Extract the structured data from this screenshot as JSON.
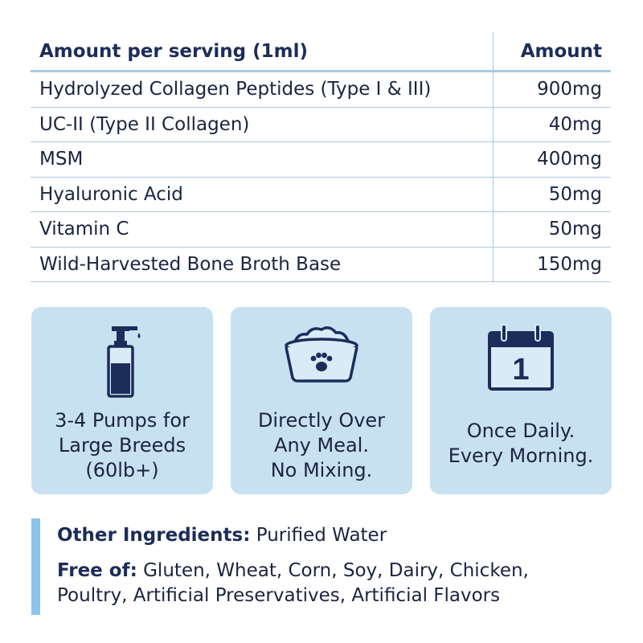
{
  "table": {
    "header_name": "Amount per serving (1ml)",
    "header_amount": "Amount",
    "rows": [
      {
        "name": "Hydrolyzed Collagen Peptides (Type I & III)",
        "amount": "900mg"
      },
      {
        "name": "UC-II (Type II Collagen)",
        "amount": "40mg"
      },
      {
        "name": "MSM",
        "amount": "400mg"
      },
      {
        "name": "Hyaluronic Acid",
        "amount": "50mg"
      },
      {
        "name": "Vitamin C",
        "amount": "50mg"
      },
      {
        "name": "Wild-Harvested Bone Broth Base",
        "amount": "150mg"
      }
    ]
  },
  "cards": [
    {
      "icon": "pump-bottle-icon",
      "lines": [
        "3-4 Pumps for",
        "Large Breeds",
        "(60lb+)"
      ]
    },
    {
      "icon": "dog-bowl-icon",
      "lines": [
        "Directly Over",
        "Any Meal.",
        "No Mixing."
      ]
    },
    {
      "icon": "calendar-icon",
      "calendar_day": "1",
      "lines": [
        "Once Daily.",
        "Every Morning."
      ]
    }
  ],
  "ingredients": {
    "other_label": "Other Ingredients:",
    "other_value": "Purified Water",
    "free_label": "Free of:",
    "free_value_line1": "Gluten, Wheat, Corn, Soy, Dairy, Chicken,",
    "free_value_line2": "Poultry, Artificial Preservatives, Artificial Flavors"
  },
  "colors": {
    "navy": "#1c2d5a",
    "card_bg": "#c8e1f1",
    "divider": "#a9c9e2",
    "accent_bar": "#8dc3e8"
  }
}
